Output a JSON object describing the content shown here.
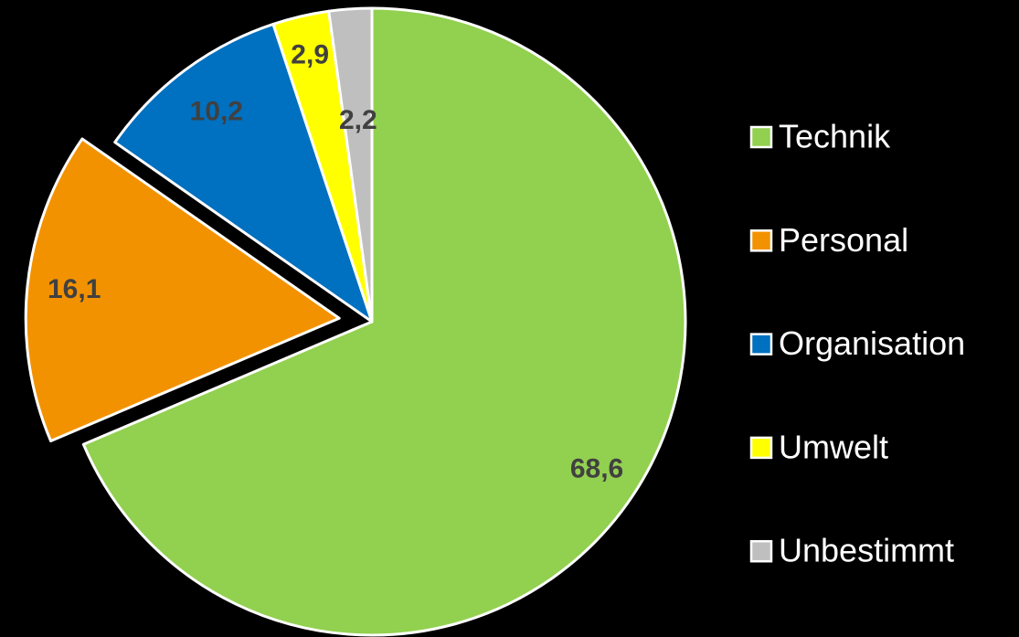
{
  "chart_data": {
    "type": "pie",
    "categories": [
      "Technik",
      "Personal",
      "Organisation",
      "Umwelt",
      "Unbestimmt"
    ],
    "values": [
      68.6,
      16.1,
      10.2,
      2.9,
      2.2
    ],
    "value_labels": [
      "68,6",
      "16,1",
      "10,2",
      "2,9",
      "2,2"
    ],
    "colors": [
      "#92d050",
      "#f39200",
      "#0070c0",
      "#ffff00",
      "#bfbfbf"
    ],
    "legend": "right"
  }
}
